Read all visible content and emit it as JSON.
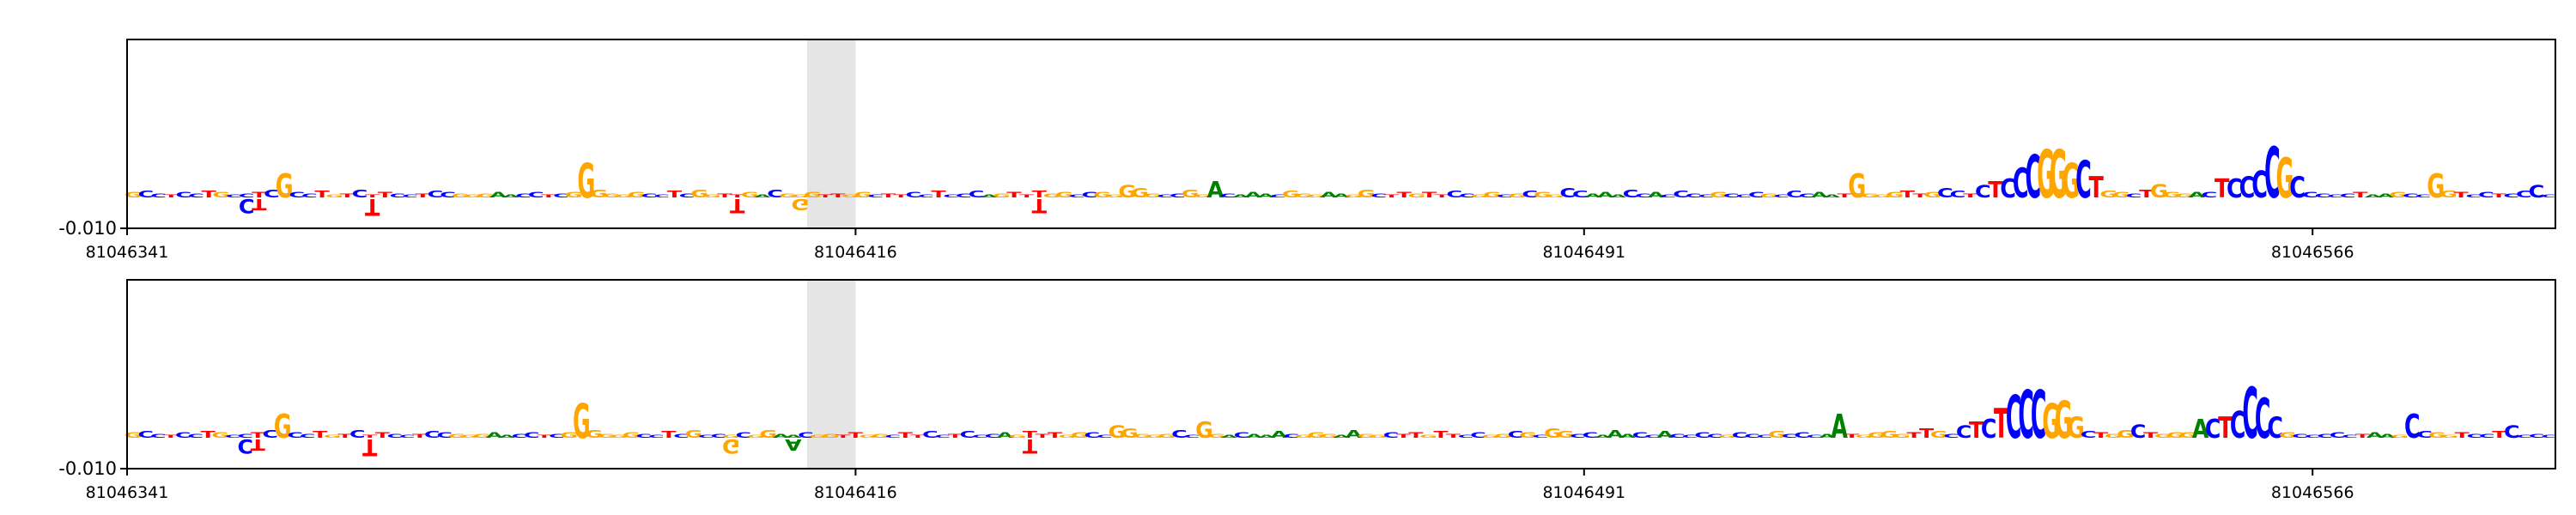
{
  "chart_data": [
    {
      "type": "sequence-logo",
      "title": "",
      "xlabel": "",
      "ylabel": "",
      "ytick_label": "-0.010",
      "xlim": [
        81046341,
        81046591
      ],
      "xticks": [
        "81046341",
        "81046416",
        "81046491",
        "81046566"
      ],
      "highlight": {
        "start": 81046411,
        "end": 81046416
      },
      "sequence": "GCCTCCTGCCTCGCCTGTCTTCCTCCGGGAACCTCGGGGGGCCTCGGTTGACGGGTTGGCTTCCTCCCAGTTTGGCCGGGGGCCGGACAAACGGGAAGGCTTGTTCCGGCGCGGCCAAACCACCCCGCCCGCCCAATGGGGTTGCCTCTCCCGGGCTGGCTGGGACTCCCCGCCCCCTAAGCCGGTCCTCCCC",
      "profile": [
        4,
        5,
        3,
        2,
        4,
        3,
        5,
        4,
        2,
        3,
        4,
        6,
        18,
        4,
        3,
        5,
        2,
        3,
        6,
        2,
        4,
        3,
        2,
        3,
        5,
        4,
        3,
        2,
        3,
        4,
        2,
        3,
        4,
        2,
        3,
        4,
        26,
        6,
        3,
        2,
        4,
        3,
        2,
        5,
        3,
        6,
        2,
        3,
        2,
        4,
        2,
        6,
        3,
        2,
        4,
        2,
        3,
        2,
        4,
        2,
        3,
        2,
        4,
        2,
        5,
        2,
        3,
        5,
        2,
        3,
        4,
        2,
        5,
        3,
        4,
        2,
        4,
        4,
        2,
        9,
        7,
        3,
        2,
        3,
        6,
        2,
        12,
        3,
        2,
        4,
        3,
        2,
        5,
        3,
        2,
        4,
        3,
        2,
        6,
        3,
        2,
        4,
        3,
        4,
        2,
        5,
        3,
        2,
        4,
        2,
        3,
        5,
        4,
        2,
        7,
        5,
        3,
        4,
        2,
        6,
        3,
        4,
        2,
        5,
        3,
        2,
        4,
        3,
        2,
        4,
        3,
        2,
        5,
        3,
        4,
        2,
        3,
        18,
        3,
        2,
        4,
        5,
        3,
        4,
        7,
        5,
        3,
        9,
        12,
        14,
        22,
        32,
        36,
        36,
        26,
        28,
        16,
        5,
        4,
        3,
        6,
        10,
        4,
        3,
        4,
        4,
        14,
        14,
        16,
        20,
        38,
        30,
        16,
        4,
        3,
        2,
        3,
        4,
        2,
        3,
        4,
        3,
        2,
        18,
        5,
        4,
        2,
        4,
        3,
        3,
        5,
        9,
        2,
        3,
        2,
        3,
        14,
        4,
        3,
        2,
        4,
        3,
        2,
        8,
        3,
        4,
        2,
        3,
        4,
        3,
        2,
        5,
        4,
        3,
        2,
        3,
        2,
        7,
        8,
        4,
        2,
        3,
        2,
        4,
        3,
        5,
        2,
        3,
        2,
        4,
        6,
        2,
        3,
        4,
        2,
        4,
        14,
        9,
        4,
        2,
        5,
        3,
        4,
        2,
        3,
        9,
        5,
        2,
        3,
        4,
        6,
        3,
        2,
        20,
        6,
        3,
        2
      ],
      "neg_profile": [
        0,
        0,
        0,
        0,
        0,
        0,
        0,
        0,
        0,
        10,
        8,
        0,
        0,
        0,
        0,
        0,
        0,
        0,
        0,
        12,
        0,
        0,
        0,
        0,
        0,
        0,
        0,
        0,
        0,
        0,
        0,
        0,
        0,
        0,
        0,
        0,
        0,
        0,
        0,
        0,
        0,
        0,
        0,
        0,
        0,
        0,
        0,
        0,
        10,
        0,
        0,
        0,
        0,
        8,
        0,
        0,
        0,
        0,
        0,
        0,
        0,
        0,
        0,
        0,
        0,
        0,
        0,
        0,
        0,
        0,
        0,
        0,
        10,
        0,
        0,
        0,
        0,
        0,
        0,
        0,
        0,
        0,
        0,
        0,
        0,
        0,
        0,
        0,
        0,
        0,
        0,
        0,
        0,
        0,
        0,
        0,
        0,
        0,
        0,
        0,
        0,
        0,
        0,
        0,
        0,
        0,
        0,
        0,
        0,
        0,
        0,
        0,
        0,
        0,
        0,
        0,
        0,
        0,
        0,
        0,
        0,
        0,
        0,
        0,
        0,
        0,
        0,
        0,
        0,
        0,
        0,
        0,
        0,
        0,
        0,
        0,
        0,
        0,
        0,
        0,
        0,
        0,
        0,
        0,
        0,
        0,
        0,
        0,
        0,
        0,
        0,
        0,
        0,
        0,
        0,
        0,
        0,
        0,
        0,
        0,
        0,
        0,
        0,
        0,
        0,
        0,
        0,
        0,
        0,
        0,
        0,
        0,
        0,
        0,
        0,
        0,
        0,
        0,
        0,
        0,
        0,
        0,
        0,
        0,
        0,
        0,
        0,
        0,
        0,
        0,
        0,
        0,
        0,
        0,
        0,
        0,
        0,
        0,
        0,
        0,
        0,
        0,
        0,
        0,
        0,
        0,
        0,
        0,
        0,
        0,
        0,
        0,
        0,
        0,
        0,
        0,
        0,
        0,
        0,
        0,
        0,
        0,
        0,
        0,
        0,
        0,
        0,
        0,
        0,
        0,
        0,
        0,
        0,
        0,
        0,
        0,
        0,
        0,
        0,
        0,
        0,
        0,
        0,
        0,
        0,
        0,
        0,
        0,
        0,
        0,
        0,
        0,
        0,
        0,
        0,
        0,
        0,
        0,
        0
      ]
    },
    {
      "type": "sequence-logo",
      "title": "",
      "xlabel": "",
      "ylabel": "",
      "ytick_label": "-0.010",
      "xlim": [
        81046341,
        81046591
      ],
      "xticks": [
        "81046341",
        "81046416",
        "81046491",
        "81046566"
      ],
      "highlight": {
        "start": 81046411,
        "end": 81046416
      },
      "sequence": "GCCTCCTGCCTCGCCTGTCTTCCTCCGGGAACCTCGGGGGGCCTCGCCGCGGAACGGTTGGCTTCCTCCCAGTTTGGCCGGGGGCCGGACAAACGGGAAGGCTTGTTCCGGCGCGGCCAAACCACCCCGCCCGCCCAATGGGGTTGCCTCTCCCGGGCTGGCTGGGACTCCCCGCCCCCTAAGCCGGTCCTCCCC",
      "profile": [
        4,
        5,
        3,
        2,
        4,
        3,
        5,
        4,
        2,
        3,
        4,
        6,
        18,
        4,
        3,
        5,
        2,
        3,
        6,
        2,
        4,
        3,
        2,
        3,
        5,
        4,
        3,
        2,
        3,
        4,
        2,
        3,
        4,
        2,
        3,
        4,
        26,
        6,
        3,
        2,
        4,
        3,
        2,
        5,
        3,
        6,
        2,
        3,
        2,
        4,
        2,
        6,
        3,
        2,
        4,
        2,
        3,
        2,
        4,
        2,
        3,
        2,
        4,
        2,
        5,
        2,
        3,
        5,
        2,
        3,
        4,
        2,
        5,
        3,
        4,
        2,
        4,
        4,
        2,
        9,
        7,
        3,
        2,
        3,
        6,
        2,
        12,
        3,
        2,
        4,
        3,
        2,
        5,
        3,
        2,
        4,
        3,
        2,
        6,
        3,
        2,
        4,
        3,
        4,
        2,
        5,
        3,
        2,
        4,
        2,
        3,
        5,
        4,
        2,
        7,
        5,
        3,
        4,
        2,
        6,
        3,
        4,
        2,
        5,
        3,
        2,
        4,
        3,
        2,
        4,
        3,
        2,
        5,
        3,
        4,
        2,
        3,
        18,
        3,
        2,
        4,
        5,
        3,
        4,
        7,
        5,
        3,
        9,
        12,
        14,
        22,
        32,
        36,
        36,
        26,
        28,
        16,
        5,
        4,
        3,
        6,
        10,
        4,
        3,
        4,
        4,
        14,
        14,
        16,
        20,
        38,
        30,
        16,
        4,
        3,
        2,
        3,
        4,
        2,
        3,
        4,
        3,
        2,
        18,
        5,
        4,
        2,
        4,
        3,
        3,
        5,
        9,
        2,
        3,
        2,
        3,
        14,
        4,
        3,
        2,
        4,
        3,
        2,
        8,
        3,
        4,
        2,
        3,
        4,
        3,
        2,
        5,
        4,
        3,
        2,
        3,
        2,
        7,
        8,
        4,
        2,
        3,
        2,
        4,
        3,
        5,
        2,
        3,
        2,
        4,
        6,
        2,
        3,
        4,
        2,
        4,
        14,
        9,
        4,
        2,
        5,
        3,
        4,
        2,
        3,
        9,
        5,
        2,
        3,
        4,
        6,
        3,
        2,
        20,
        6,
        3,
        2
      ],
      "neg_profile": [
        0,
        0,
        0,
        0,
        0,
        0,
        0,
        0,
        0,
        10,
        8,
        0,
        0,
        0,
        0,
        0,
        0,
        0,
        0,
        12,
        0,
        0,
        0,
        0,
        0,
        0,
        0,
        0,
        0,
        0,
        0,
        0,
        0,
        0,
        0,
        0,
        0,
        0,
        0,
        0,
        0,
        0,
        0,
        0,
        0,
        0,
        0,
        0,
        10,
        0,
        0,
        0,
        0,
        8,
        0,
        0,
        0,
        0,
        0,
        0,
        0,
        0,
        0,
        0,
        0,
        0,
        0,
        0,
        0,
        0,
        0,
        0,
        10,
        0,
        0,
        0,
        0,
        0,
        0,
        0,
        0,
        0,
        0,
        0,
        0,
        0,
        0,
        0,
        0,
        0,
        0,
        0,
        0,
        0,
        0,
        0,
        0,
        0,
        0,
        0,
        0,
        0,
        0,
        0,
        0,
        0,
        0,
        0,
        0,
        0,
        0,
        0,
        0,
        0,
        0,
        0,
        0,
        0,
        0,
        0,
        0,
        0,
        0,
        0,
        0,
        0,
        0,
        0,
        0,
        0,
        0,
        0,
        0,
        0,
        0,
        0,
        0,
        0,
        0,
        0,
        0,
        0,
        0,
        0,
        0,
        0,
        0,
        0,
        0,
        0,
        0,
        0,
        0,
        0,
        0,
        0,
        0,
        0,
        0,
        0,
        0,
        0,
        0,
        0,
        0,
        0,
        0,
        0,
        0,
        0,
        0,
        0,
        0,
        0,
        0,
        0,
        0,
        0,
        0,
        0,
        0,
        0,
        0,
        0,
        0,
        0,
        0,
        0,
        0,
        0,
        0,
        0,
        0,
        0,
        0,
        0,
        0,
        0,
        0,
        0,
        0,
        0,
        0,
        0,
        0,
        0,
        0,
        0,
        0,
        0,
        0,
        0,
        0,
        0,
        0,
        0,
        0,
        0,
        0,
        0,
        0,
        0,
        0,
        0,
        0,
        0,
        0,
        0,
        0,
        0,
        0,
        0,
        0,
        0,
        0,
        0,
        0,
        0,
        0,
        0,
        0,
        0,
        0,
        0,
        0,
        0,
        0,
        0,
        0,
        0,
        0,
        0,
        0,
        0,
        0,
        0,
        0,
        0
      ]
    }
  ],
  "base_colors": {
    "A": "#008000",
    "C": "#0000ff",
    "G": "#ffa500",
    "T": "#ff0000"
  },
  "highlight_color": "#e5e5e5"
}
